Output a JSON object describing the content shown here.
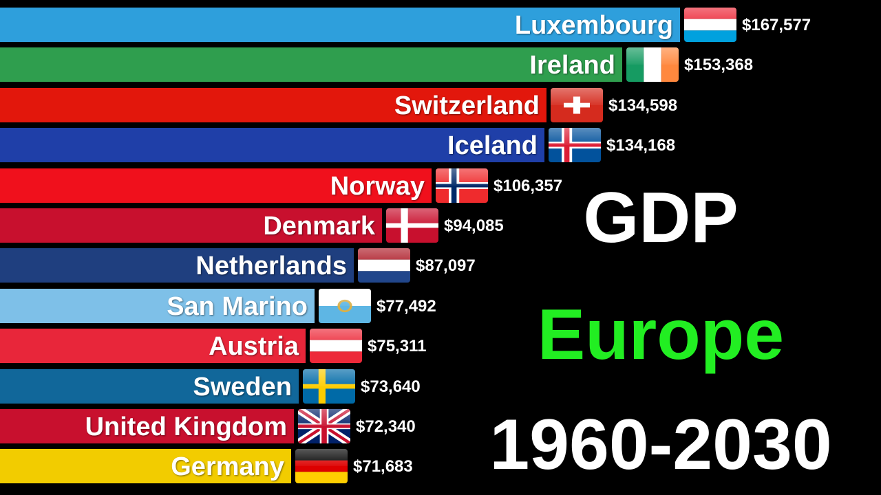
{
  "titles": {
    "line1": "GDP",
    "line2": "Europe",
    "line3": "1960-2030",
    "line2_color": "#22ee22"
  },
  "chart_data": {
    "type": "bar",
    "orientation": "horizontal",
    "value_prefix": "$",
    "categories": [
      "Luxembourg",
      "Ireland",
      "Switzerland",
      "Iceland",
      "Norway",
      "Denmark",
      "Netherlands",
      "San Marino",
      "Austria",
      "Sweden",
      "United Kingdom",
      "Germany"
    ],
    "values": [
      167577,
      153368,
      134598,
      134168,
      106357,
      94085,
      87097,
      77492,
      75311,
      73640,
      72340,
      71683
    ],
    "value_labels": [
      "$167,577",
      "$153,368",
      "$134,598",
      "$134,168",
      "$106,357",
      "$94,085",
      "$87,097",
      "$77,492",
      "$75,311",
      "$73,640",
      "$72,340",
      "$71,683"
    ],
    "colors": [
      "#2e9fdc",
      "#2f9e4e",
      "#e2170c",
      "#1f3fa8",
      "#f0101c",
      "#c8102e",
      "#1f3f7f",
      "#7ec0e8",
      "#e8263a",
      "#11679a",
      "#c8102e",
      "#f2cc00"
    ],
    "flags": [
      "luxembourg",
      "ireland",
      "switzerland",
      "iceland",
      "norway",
      "denmark",
      "netherlands",
      "san-marino",
      "austria",
      "sweden",
      "united-kingdom",
      "germany"
    ],
    "grid": false,
    "legend": "none"
  }
}
